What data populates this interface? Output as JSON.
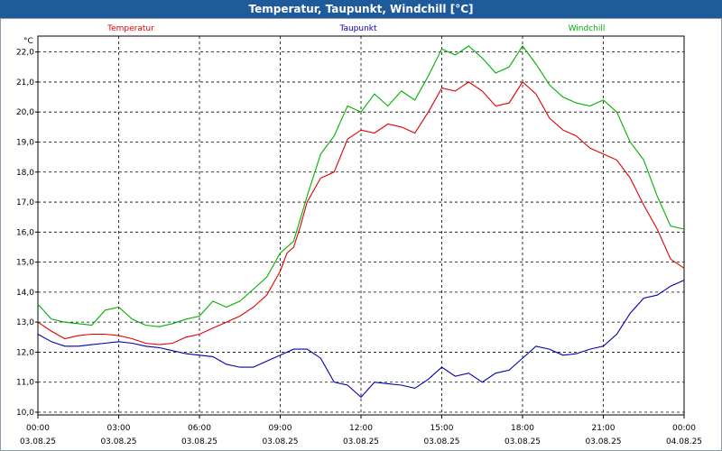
{
  "window": {
    "title": "Temperatur, Taupunkt, Windchill [°C]"
  },
  "chart_data": {
    "type": "line",
    "title": "Temperatur, Taupunkt, Windchill [°C]",
    "ylabel": "°C",
    "ylim": [
      10.0,
      22.5
    ],
    "yticks": [
      "10,0",
      "11,0",
      "12,0",
      "13,0",
      "14,0",
      "15,0",
      "16,0",
      "17,0",
      "18,0",
      "19,0",
      "20,0",
      "21,0",
      "22,0"
    ],
    "xlim": [
      0,
      24
    ],
    "xticks": [
      {
        "time": "00:00",
        "date": "03.08.25"
      },
      {
        "time": "03:00",
        "date": "03.08.25"
      },
      {
        "time": "06:00",
        "date": "03.08.25"
      },
      {
        "time": "09:00",
        "date": "03.08.25"
      },
      {
        "time": "12:00",
        "date": "03.08.25"
      },
      {
        "time": "15:00",
        "date": "03.08.25"
      },
      {
        "time": "18:00",
        "date": "03.08.25"
      },
      {
        "time": "21:00",
        "date": "03.08.25"
      },
      {
        "time": "00:00",
        "date": "04.08.25"
      }
    ],
    "grid": true,
    "legend_position": "top",
    "series": [
      {
        "name": "Temperatur",
        "color": "#e00000",
        "points": [
          [
            0,
            13.0
          ],
          [
            0.5,
            12.7
          ],
          [
            1,
            12.45
          ],
          [
            1.5,
            12.55
          ],
          [
            2,
            12.6
          ],
          [
            2.5,
            12.6
          ],
          [
            3,
            12.55
          ],
          [
            3.5,
            12.45
          ],
          [
            4,
            12.3
          ],
          [
            4.5,
            12.25
          ],
          [
            5,
            12.3
          ],
          [
            5.5,
            12.5
          ],
          [
            6,
            12.6
          ],
          [
            6.5,
            12.8
          ],
          [
            7,
            13.0
          ],
          [
            7.5,
            13.2
          ],
          [
            8,
            13.5
          ],
          [
            8.5,
            13.9
          ],
          [
            9,
            14.7
          ],
          [
            9.25,
            15.3
          ],
          [
            9.5,
            15.5
          ],
          [
            9.75,
            16.2
          ],
          [
            10,
            17.0
          ],
          [
            10.5,
            17.8
          ],
          [
            11,
            18.0
          ],
          [
            11.5,
            19.1
          ],
          [
            12,
            19.4
          ],
          [
            12.5,
            19.3
          ],
          [
            13,
            19.6
          ],
          [
            13.5,
            19.5
          ],
          [
            14,
            19.3
          ],
          [
            14.5,
            20.0
          ],
          [
            15,
            20.8
          ],
          [
            15.5,
            20.7
          ],
          [
            16,
            21.0
          ],
          [
            16.5,
            20.7
          ],
          [
            17,
            20.2
          ],
          [
            17.5,
            20.3
          ],
          [
            18,
            21.0
          ],
          [
            18.5,
            20.6
          ],
          [
            19,
            19.8
          ],
          [
            19.5,
            19.4
          ],
          [
            20,
            19.2
          ],
          [
            20.5,
            18.8
          ],
          [
            21,
            18.6
          ],
          [
            21.5,
            18.4
          ],
          [
            22,
            17.8
          ],
          [
            22.5,
            16.9
          ],
          [
            23,
            16.1
          ],
          [
            23.5,
            15.1
          ],
          [
            24,
            14.8
          ]
        ]
      },
      {
        "name": "Taupunkt",
        "color": "#0000b0",
        "points": [
          [
            0,
            12.6
          ],
          [
            0.5,
            12.35
          ],
          [
            1,
            12.2
          ],
          [
            1.5,
            12.2
          ],
          [
            2,
            12.25
          ],
          [
            2.5,
            12.3
          ],
          [
            3,
            12.35
          ],
          [
            3.5,
            12.3
          ],
          [
            4,
            12.2
          ],
          [
            4.5,
            12.15
          ],
          [
            5,
            12.05
          ],
          [
            5.5,
            11.95
          ],
          [
            6,
            11.9
          ],
          [
            6.5,
            11.85
          ],
          [
            7,
            11.6
          ],
          [
            7.5,
            11.5
          ],
          [
            8,
            11.5
          ],
          [
            8.5,
            11.7
          ],
          [
            9,
            11.9
          ],
          [
            9.5,
            12.1
          ],
          [
            10,
            12.1
          ],
          [
            10.5,
            11.8
          ],
          [
            11,
            11.0
          ],
          [
            11.5,
            10.9
          ],
          [
            12,
            10.5
          ],
          [
            12.5,
            11.0
          ],
          [
            13,
            10.95
          ],
          [
            13.5,
            10.9
          ],
          [
            14,
            10.8
          ],
          [
            14.5,
            11.1
          ],
          [
            15,
            11.5
          ],
          [
            15.5,
            11.2
          ],
          [
            16,
            11.3
          ],
          [
            16.5,
            11.0
          ],
          [
            17,
            11.3
          ],
          [
            17.5,
            11.4
          ],
          [
            18,
            11.8
          ],
          [
            18.5,
            12.2
          ],
          [
            19,
            12.1
          ],
          [
            19.5,
            11.9
          ],
          [
            20,
            11.95
          ],
          [
            20.5,
            12.1
          ],
          [
            21,
            12.2
          ],
          [
            21.5,
            12.6
          ],
          [
            22,
            13.3
          ],
          [
            22.5,
            13.8
          ],
          [
            23,
            13.9
          ],
          [
            23.5,
            14.2
          ],
          [
            24,
            14.4
          ]
        ]
      },
      {
        "name": "Windchill",
        "color": "#00b000",
        "points": [
          [
            0,
            13.6
          ],
          [
            0.5,
            13.1
          ],
          [
            1,
            13.0
          ],
          [
            1.5,
            12.95
          ],
          [
            2,
            12.9
          ],
          [
            2.5,
            13.4
          ],
          [
            3,
            13.5
          ],
          [
            3.5,
            13.1
          ],
          [
            4,
            12.9
          ],
          [
            4.5,
            12.85
          ],
          [
            5,
            12.95
          ],
          [
            5.5,
            13.1
          ],
          [
            6,
            13.2
          ],
          [
            6.5,
            13.7
          ],
          [
            7,
            13.5
          ],
          [
            7.5,
            13.7
          ],
          [
            8,
            14.1
          ],
          [
            8.5,
            14.5
          ],
          [
            9,
            15.3
          ],
          [
            9.5,
            15.7
          ],
          [
            10,
            17.2
          ],
          [
            10.5,
            18.6
          ],
          [
            11,
            19.2
          ],
          [
            11.5,
            20.2
          ],
          [
            12,
            20.0
          ],
          [
            12.5,
            20.6
          ],
          [
            13,
            20.2
          ],
          [
            13.5,
            20.7
          ],
          [
            14,
            20.4
          ],
          [
            14.5,
            21.2
          ],
          [
            15,
            22.1
          ],
          [
            15.5,
            21.9
          ],
          [
            16,
            22.2
          ],
          [
            16.5,
            21.8
          ],
          [
            17,
            21.3
          ],
          [
            17.5,
            21.5
          ],
          [
            18,
            22.2
          ],
          [
            18.5,
            21.6
          ],
          [
            19,
            20.9
          ],
          [
            19.5,
            20.5
          ],
          [
            20,
            20.3
          ],
          [
            20.5,
            20.2
          ],
          [
            21,
            20.4
          ],
          [
            21.5,
            20.0
          ],
          [
            22,
            19.0
          ],
          [
            22.5,
            18.4
          ],
          [
            23,
            17.2
          ],
          [
            23.5,
            16.2
          ],
          [
            24,
            16.1
          ]
        ]
      }
    ]
  }
}
